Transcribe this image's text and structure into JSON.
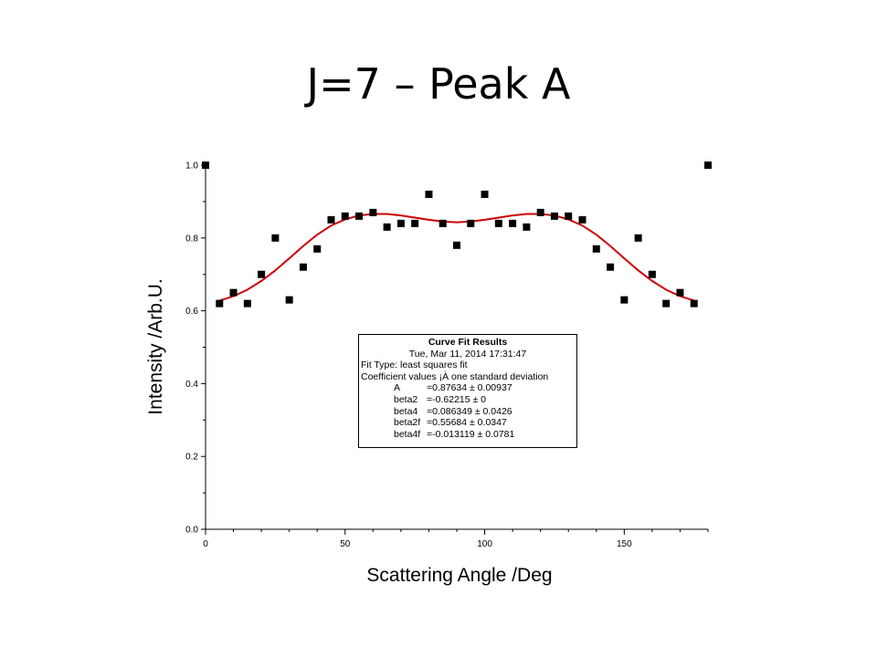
{
  "slide": {
    "title": "J=7 – Peak A"
  },
  "chart_data": {
    "type": "scatter",
    "title": "",
    "xlabel": "Scattering Angle /Deg",
    "ylabel": "Intensity /Arb.U.",
    "xlim": [
      0,
      180
    ],
    "ylim": [
      0,
      1.0
    ],
    "xticks": [
      "0",
      "50",
      "100",
      "150"
    ],
    "xtick_values": [
      0,
      50,
      100,
      150
    ],
    "yticks": [
      "0.0",
      "0.2",
      "0.4",
      "0.6",
      "0.8",
      "1.0"
    ],
    "ytick_values": [
      0.0,
      0.2,
      0.4,
      0.6,
      0.8,
      1.0
    ],
    "grid": false,
    "series": [
      {
        "kind": "markers",
        "marker": "square",
        "color": "#000000",
        "x": [
          0,
          5,
          10,
          15,
          20,
          25,
          30,
          35,
          40,
          45,
          50,
          55,
          60,
          65,
          70,
          75,
          80,
          85,
          90,
          95,
          100,
          105,
          110,
          115,
          120,
          125,
          130,
          135,
          140,
          145,
          150,
          155,
          160,
          165,
          170,
          175,
          180
        ],
        "y": [
          1.0,
          0.62,
          0.65,
          0.62,
          0.7,
          0.8,
          0.63,
          0.72,
          0.77,
          0.85,
          0.86,
          0.86,
          0.87,
          0.83,
          0.84,
          0.84,
          0.92,
          0.84,
          0.78,
          0.84,
          0.92,
          0.84,
          0.84,
          0.83,
          0.87,
          0.86,
          0.86,
          0.85,
          0.77,
          0.72,
          0.63,
          0.8,
          0.7,
          0.62,
          0.65,
          0.62,
          1.0
        ]
      },
      {
        "kind": "line",
        "color": "#cc0000",
        "x": [
          5,
          10,
          15,
          20,
          25,
          30,
          35,
          40,
          45,
          50,
          55,
          60,
          65,
          70,
          75,
          80,
          85,
          90,
          95,
          100,
          105,
          110,
          115,
          120,
          125,
          130,
          135,
          140,
          145,
          150,
          155,
          160,
          165,
          170,
          175
        ],
        "y": [
          0.628,
          0.64,
          0.658,
          0.682,
          0.711,
          0.744,
          0.778,
          0.809,
          0.834,
          0.851,
          0.862,
          0.866,
          0.866,
          0.862,
          0.856,
          0.85,
          0.845,
          0.843,
          0.845,
          0.85,
          0.856,
          0.862,
          0.866,
          0.866,
          0.862,
          0.851,
          0.834,
          0.809,
          0.778,
          0.744,
          0.711,
          0.682,
          0.658,
          0.64,
          0.628
        ]
      }
    ],
    "annotation": {
      "title": "Curve Fit Results",
      "date": "Tue, Mar 11, 2014 17:31:47",
      "fit_type": "Fit Type: least squares fit",
      "coef_header": "Coefficient values ¡À one standard deviation",
      "coefficients": [
        {
          "name": "A",
          "value": "=0.87634 ± 0.00937"
        },
        {
          "name": "beta2",
          "value": "=-0.62215 ± 0"
        },
        {
          "name": "beta4",
          "value": "=0.086349 ± 0.0426"
        },
        {
          "name": "beta2f",
          "value": "=0.55684 ± 0.0347"
        },
        {
          "name": "beta4f",
          "value": "=-0.013119 ± 0.0781"
        }
      ]
    }
  }
}
